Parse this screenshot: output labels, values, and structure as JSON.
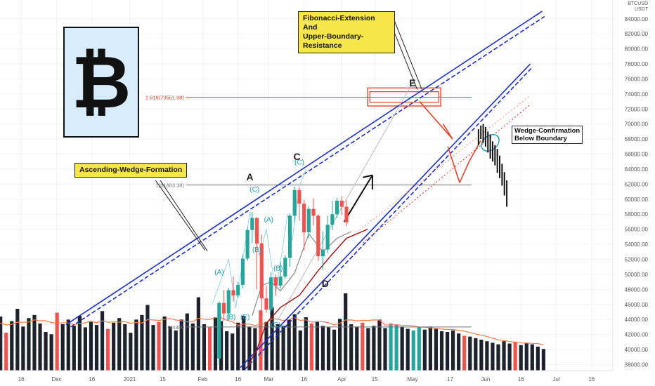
{
  "logo": {
    "symbol": "₿",
    "icon": "bitcoin-icon"
  },
  "callouts": {
    "fib": "Fibonacci-Extension And\nUpper-Boundary-Resistance",
    "wedge": "Ascending-Wedge-Formation",
    "confirm": "Wedge-Confirmation\nBelow Boundary"
  },
  "axis": {
    "currency_top": "BTCUSD",
    "currency": "USDT"
  },
  "fib_levels": [
    {
      "label": "1.618(73551.98)",
      "value": 73551.98,
      "color": "#e8412c"
    },
    {
      "label": "1(61883.38)",
      "value": 61883.38,
      "color": "#777777"
    },
    {
      "label": "0(4300",
      "value": 43000,
      "color": "#777777"
    }
  ],
  "wave_labels": [
    {
      "text": "A",
      "date": "2021-02-21",
      "value": 62500,
      "color": "#222222",
      "size": "big"
    },
    {
      "text": "C",
      "date": "2021-03-13",
      "value": 65200,
      "color": "#222222",
      "size": "big"
    },
    {
      "text": "D",
      "date": "2021-03-25",
      "value": 48300,
      "color": "#222222",
      "size": "big"
    },
    {
      "text": "E",
      "date": "2021-05-01",
      "value": 75000,
      "color": "#222222",
      "size": "big"
    },
    {
      "text": "(A)",
      "date": "2021-02-08",
      "value": 50000,
      "color": "#1f9bb5",
      "size": "small"
    },
    {
      "text": "(B)",
      "date": "2021-02-13",
      "value": 44000,
      "color": "#1f9bb5",
      "size": "small"
    },
    {
      "text": "(C)",
      "date": "2021-02-23",
      "value": 61000,
      "color": "#1f9bb5",
      "size": "small"
    },
    {
      "text": "(A)",
      "date": "2021-03-01",
      "value": 57000,
      "color": "#1f9bb5",
      "size": "small"
    },
    {
      "text": "(B)",
      "date": "2021-02-24",
      "value": 53000,
      "color": "#1f9bb5",
      "size": "small"
    },
    {
      "text": "(B)",
      "date": "2021-03-05",
      "value": 50500,
      "color": "#1f9bb5",
      "size": "small"
    },
    {
      "text": "(C)",
      "date": "2021-03-14",
      "value": 64600,
      "color": "#1f9bb5",
      "size": "small"
    },
    {
      "text": "(C)",
      "date": "2021-03-04",
      "value": 43000,
      "color": "#1f9bb5",
      "size": "small"
    },
    {
      "text": "(E)",
      "date": "2021-02-19",
      "value": 44000,
      "color": "#1f9bb5",
      "size": "small"
    }
  ],
  "chart_data": {
    "type": "candlestick",
    "symbol": "BTCUSD",
    "timeframe": "1D",
    "xlim": [
      "2020-11-07",
      "2021-07-25"
    ],
    "ylim": [
      37200,
      86500
    ],
    "yticks": [
      38000,
      40000,
      42000,
      44000,
      46000,
      48000,
      50000,
      52000,
      54000,
      56000,
      58000,
      60000,
      62000,
      64000,
      66000,
      68000,
      70000,
      72000,
      74000,
      76000,
      78000,
      80000,
      82000,
      84000
    ],
    "xticks": [
      {
        "label": "16",
        "date": "2020-11-16"
      },
      {
        "label": "Dec",
        "date": "2020-12-01"
      },
      {
        "label": "16",
        "date": "2020-12-16"
      },
      {
        "label": "2021",
        "date": "2021-01-01"
      },
      {
        "label": "15",
        "date": "2021-01-15"
      },
      {
        "label": "Feb",
        "date": "2021-02-01"
      },
      {
        "label": "16",
        "date": "2021-02-16"
      },
      {
        "label": "Mar",
        "date": "2021-03-01"
      },
      {
        "label": "16",
        "date": "2021-03-16"
      },
      {
        "label": "Apr",
        "date": "2021-04-01"
      },
      {
        "label": "15",
        "date": "2021-04-15"
      },
      {
        "label": "May",
        "date": "2021-05-01"
      },
      {
        "label": "17",
        "date": "2021-05-17"
      },
      {
        "label": "Jun",
        "date": "2021-06-01"
      },
      {
        "label": "16",
        "date": "2021-06-16"
      },
      {
        "label": "Jul",
        "date": "2021-07-01"
      },
      {
        "label": "16",
        "date": "2021-07-16"
      }
    ],
    "candles_start": "2021-02-08",
    "candle_step_days": 2,
    "candles": [
      [
        38800,
        46200,
        38000,
        46400
      ],
      [
        46200,
        44800,
        43800,
        47900
      ],
      [
        44800,
        47900,
        43900,
        48200
      ],
      [
        47900,
        47200,
        46400,
        49700
      ],
      [
        47200,
        48600,
        46900,
        49000
      ],
      [
        48600,
        52100,
        48100,
        52600
      ],
      [
        52100,
        55900,
        51800,
        56300
      ],
      [
        55900,
        57500,
        54200,
        58300
      ],
      [
        57500,
        54100,
        48000,
        57600
      ],
      [
        54100,
        46800,
        45000,
        55300
      ],
      [
        46800,
        45300,
        44900,
        48500
      ],
      [
        45300,
        49600,
        45000,
        50300
      ],
      [
        49600,
        48500,
        47100,
        50000
      ],
      [
        48500,
        49700,
        48100,
        51700
      ],
      [
        49700,
        52200,
        49400,
        52600
      ],
      [
        52200,
        57800,
        51000,
        58100
      ],
      [
        57800,
        61200,
        56900,
        61700
      ],
      [
        61200,
        59400,
        57100,
        61500
      ],
      [
        59400,
        55600,
        53200,
        59900
      ],
      [
        55600,
        58700,
        54800,
        59100
      ],
      [
        58700,
        57800,
        56500,
        60100
      ],
      [
        57800,
        52400,
        51800,
        58000
      ],
      [
        52400,
        53300,
        50600,
        55700
      ],
      [
        53300,
        56600,
        52800,
        57800
      ],
      [
        56600,
        58000,
        55900,
        59800
      ],
      [
        58000,
        59800,
        57500,
        60200
      ],
      [
        59800,
        59000,
        57900,
        60400
      ],
      [
        59000,
        56900,
        56400,
        59800
      ]
    ],
    "projection_start": "2021-05-29",
    "projection_step_days": 1,
    "projection_bars": [
      [
        67200,
        69300
      ],
      [
        68000,
        69800
      ],
      [
        67500,
        70000
      ],
      [
        67000,
        69600
      ],
      [
        66200,
        69000
      ],
      [
        65400,
        68600
      ],
      [
        65000,
        67700
      ],
      [
        64500,
        67200
      ],
      [
        63500,
        66700
      ],
      [
        62800,
        65800
      ],
      [
        61800,
        64700
      ],
      [
        60500,
        63600
      ],
      [
        59000,
        62500
      ]
    ],
    "volume": [
      58,
      66,
      52,
      70,
      49,
      64,
      80,
      57,
      68,
      72,
      61,
      50,
      47,
      75,
      60,
      66,
      58,
      71,
      56,
      63,
      59,
      77,
      54,
      62,
      68,
      60,
      49,
      66,
      72,
      85,
      59,
      63,
      70,
      57,
      52,
      66,
      74,
      61,
      95,
      60,
      56,
      69,
      64,
      51,
      48,
      62,
      71,
      57,
      55,
      78,
      63,
      82,
      60,
      58,
      66,
      73,
      52,
      69,
      61,
      64,
      58,
      56,
      53,
      67,
      100,
      60,
      57,
      62,
      55,
      58,
      66,
      55,
      61,
      59,
      57,
      54,
      52,
      56,
      53,
      57,
      54,
      51,
      50,
      52,
      48,
      45,
      44,
      42,
      40,
      38,
      36,
      34,
      38,
      35,
      37,
      33,
      36,
      34,
      31,
      28
    ],
    "volume_colors_up": [
      72,
      73,
      76,
      77
    ]
  }
}
